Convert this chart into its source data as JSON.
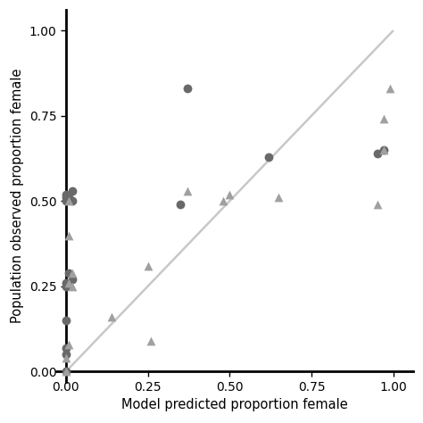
{
  "circles_x": [
    0.0,
    0.0,
    0.0,
    0.0,
    0.0,
    0.0,
    0.0,
    0.0,
    0.0,
    0.01,
    0.01,
    0.02,
    0.02,
    0.02,
    0.35,
    0.37,
    0.62,
    0.95,
    0.97
  ],
  "circles_y": [
    0.0,
    0.05,
    0.07,
    0.15,
    0.25,
    0.26,
    0.5,
    0.51,
    0.52,
    0.29,
    0.51,
    0.27,
    0.5,
    0.53,
    0.49,
    0.83,
    0.63,
    0.64,
    0.65
  ],
  "triangles_x": [
    0.0,
    0.0,
    0.01,
    0.01,
    0.01,
    0.01,
    0.02,
    0.02,
    0.14,
    0.25,
    0.26,
    0.37,
    0.48,
    0.5,
    0.65,
    0.95,
    0.97,
    0.97,
    0.99
  ],
  "triangles_y": [
    0.0,
    0.04,
    0.08,
    0.26,
    0.4,
    0.5,
    0.25,
    0.29,
    0.16,
    0.31,
    0.09,
    0.53,
    0.5,
    0.52,
    0.51,
    0.49,
    0.65,
    0.74,
    0.83
  ],
  "circle_color": "#696969",
  "triangle_color": "#a0a0a0",
  "diagonal_color": "#c8c8c8",
  "xlabel": "Model predicted proportion female",
  "ylabel": "Population observed proportion female",
  "xlim": [
    -0.03,
    1.06
  ],
  "ylim": [
    -0.03,
    1.06
  ],
  "xticks": [
    0.0,
    0.25,
    0.5,
    0.75,
    1.0
  ],
  "yticks": [
    0.0,
    0.25,
    0.5,
    0.75,
    1.0
  ],
  "xtick_labels": [
    "0.00",
    "0.25",
    "0.50",
    "0.75",
    "1.00"
  ],
  "ytick_labels": [
    "0.00",
    "0.25",
    "0.50",
    "0.75",
    "1.00"
  ],
  "marker_size": 50,
  "bg_color": "#ffffff",
  "axis_color": "#000000",
  "label_fontsize": 10.5,
  "tick_fontsize": 9.5,
  "spine_linewidth": 2.0,
  "figsize": [
    4.74,
    4.74
  ],
  "dpi": 100
}
